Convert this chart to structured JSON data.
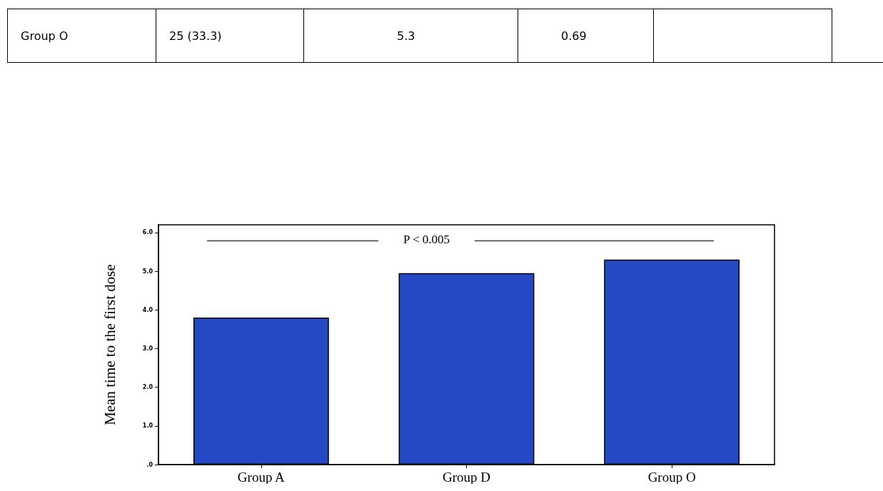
{
  "chart_data": [
    {
      "type": "other",
      "annotations": [
        "Group O",
        "25 (33.3)",
        "5.3",
        "0.69"
      ]
    },
    {
      "type": "bar",
      "ylabel": "Mean time to the first dose",
      "categories": [
        "Group A",
        "Group D",
        "Group O"
      ],
      "values": [
        3.8,
        4.95,
        5.3
      ],
      "color": "#2549c4",
      "ylim": [
        0,
        6.2
      ],
      "yticks": [
        {
          "value": 0,
          "label": ".0"
        },
        {
          "value": 1,
          "label": "1.0"
        },
        {
          "value": 2,
          "label": "2.0"
        },
        {
          "value": 3,
          "label": "3.0"
        },
        {
          "value": 4,
          "label": "4.0"
        },
        {
          "value": 5,
          "label": "5.0"
        },
        {
          "value": 6,
          "label": "6.0"
        }
      ],
      "grid": false,
      "annotations": [
        "P < 0.005"
      ]
    }
  ]
}
